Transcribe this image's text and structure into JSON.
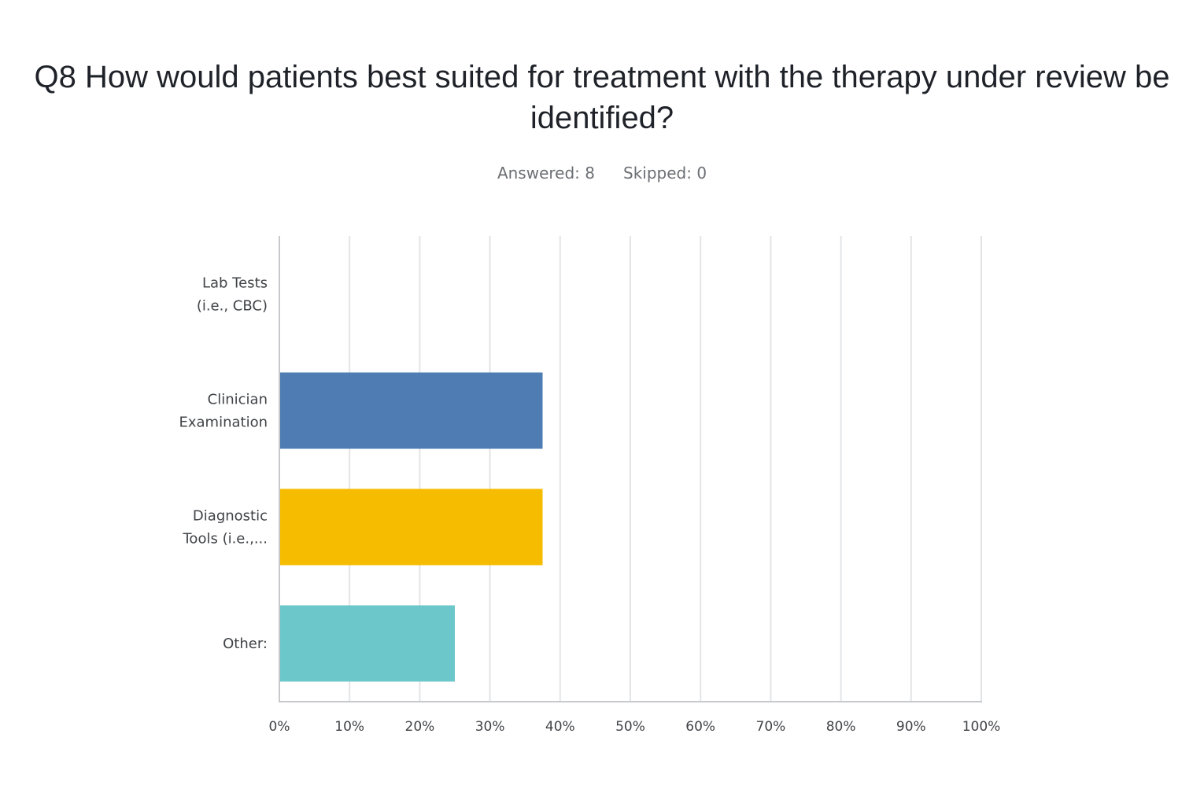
{
  "header": {
    "title": "Q8 How would patients best suited for treatment with the therapy under review be identified?",
    "answered_label": "Answered: 8",
    "skipped_label": "Skipped: 0"
  },
  "chart_data": {
    "type": "bar",
    "orientation": "horizontal",
    "title": "Q8 How would patients best suited for treatment with the therapy under review be identified?",
    "categories": [
      [
        "Lab Tests",
        "(i.e., CBC)"
      ],
      [
        "Clinician",
        "Examination"
      ],
      [
        "Diagnostic",
        "Tools (i.e.,..."
      ],
      [
        "Other:"
      ]
    ],
    "values": [
      0,
      37.5,
      37.5,
      25
    ],
    "colors": [
      "#2e6db4",
      "#4e7cb3",
      "#f6bd00",
      "#6cc7cb"
    ],
    "xlim": [
      0,
      100
    ],
    "xticks": [
      "0%",
      "10%",
      "20%",
      "30%",
      "40%",
      "50%",
      "60%",
      "70%",
      "80%",
      "90%",
      "100%"
    ],
    "xlabel": "",
    "ylabel": "",
    "grid": "vertical"
  }
}
